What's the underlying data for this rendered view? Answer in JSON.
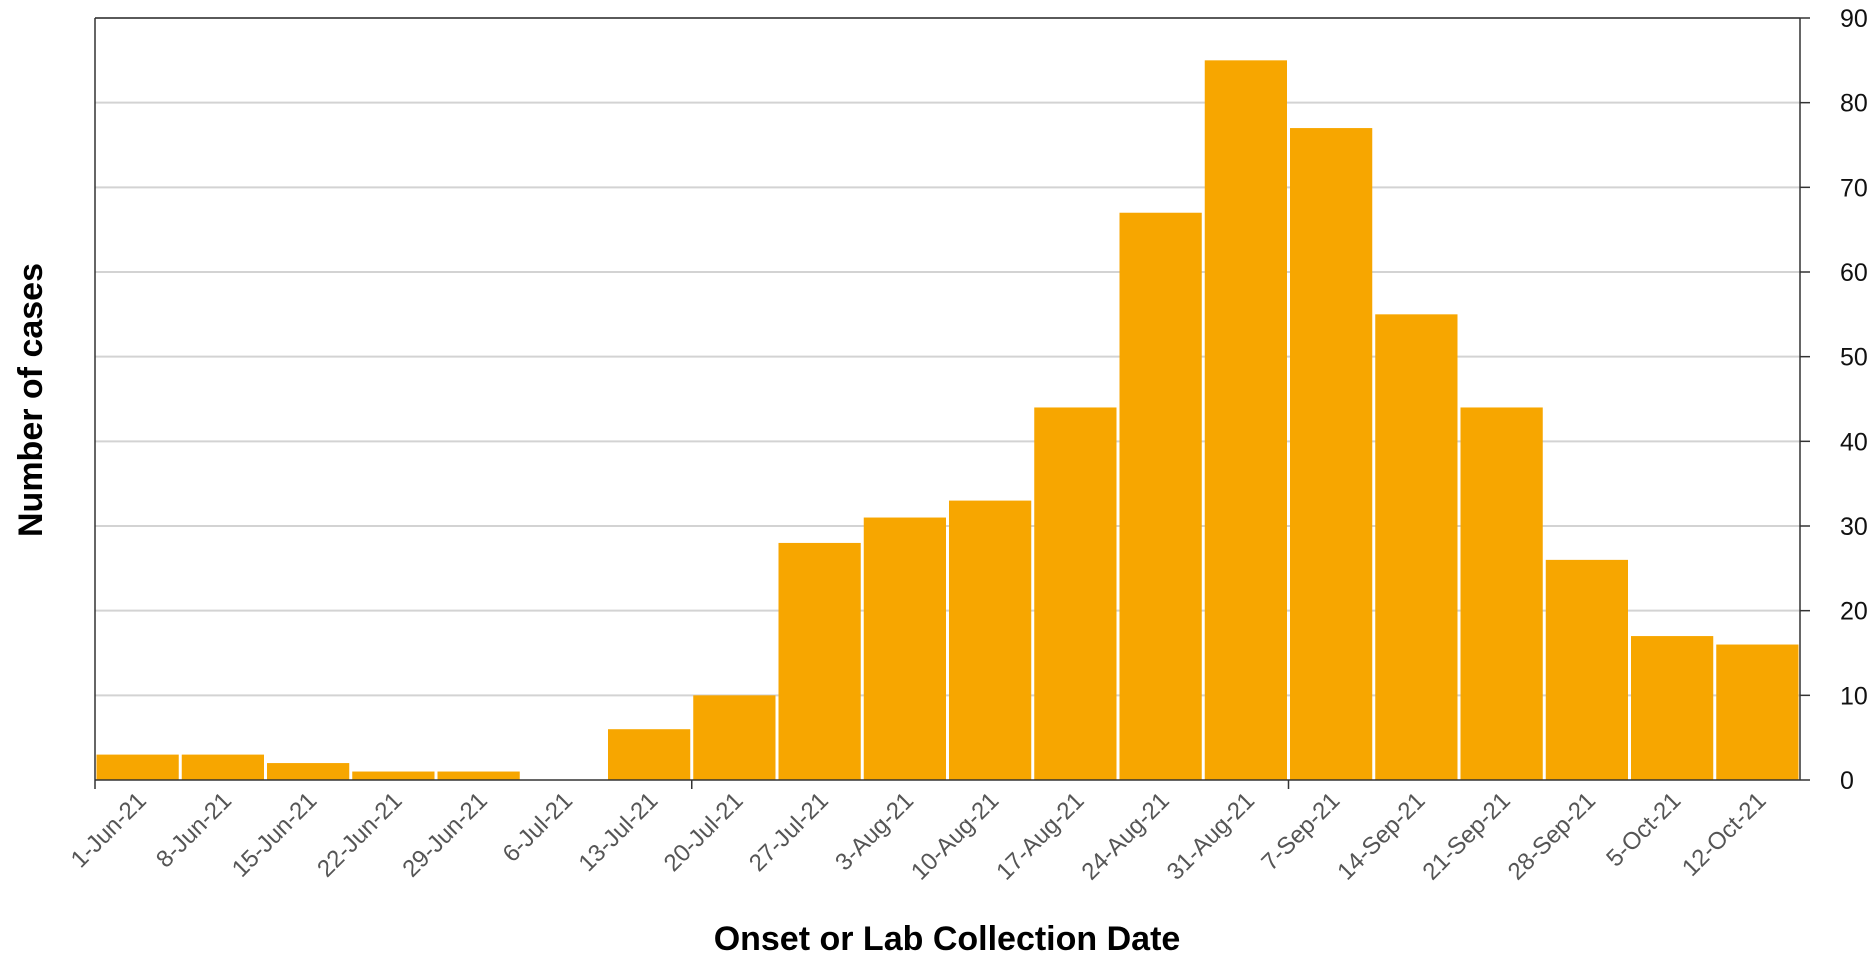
{
  "chart_data": {
    "type": "bar",
    "xlabel": "Onset or Lab Collection Date",
    "ylabel": "Number of cases",
    "categories": [
      "1-Jun-21",
      "8-Jun-21",
      "15-Jun-21",
      "22-Jun-21",
      "29-Jun-21",
      "6-Jul-21",
      "13-Jul-21",
      "20-Jul-21",
      "27-Jul-21",
      "3-Aug-21",
      "10-Aug-21",
      "17-Aug-21",
      "24-Aug-21",
      "31-Aug-21",
      "7-Sep-21",
      "14-Sep-21",
      "21-Sep-21",
      "28-Sep-21",
      "5-Oct-21",
      "12-Oct-21"
    ],
    "values": [
      3,
      3,
      2,
      1,
      1,
      0,
      6,
      10,
      28,
      31,
      33,
      44,
      67,
      85,
      77,
      55,
      44,
      26,
      17,
      16
    ],
    "ylim": [
      0,
      90
    ],
    "yticks": [
      0,
      10,
      20,
      30,
      40,
      50,
      60,
      70,
      80,
      90
    ],
    "y_axis_side": "right",
    "grid": true,
    "legend": "none",
    "bar_color": "#F7A600",
    "grid_color": "#D3D3D3"
  }
}
